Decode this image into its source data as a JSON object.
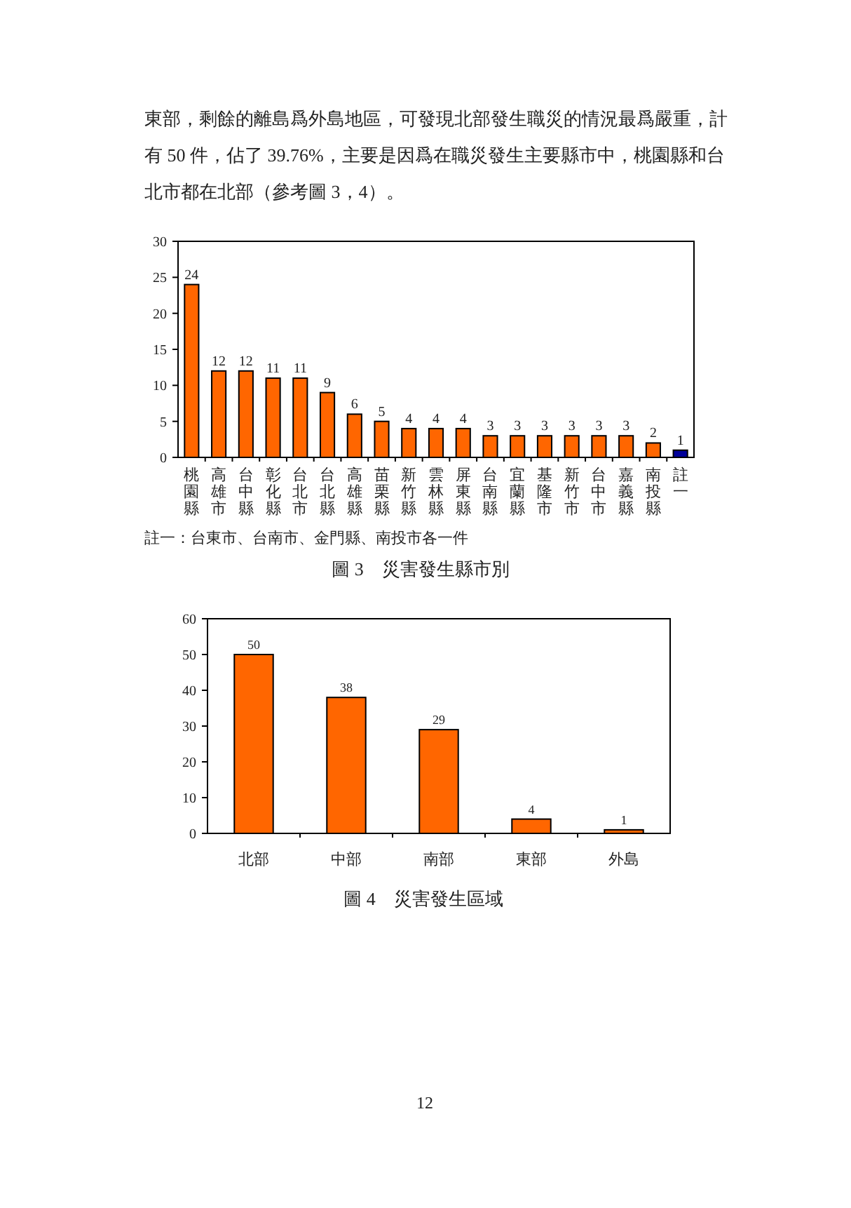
{
  "chart_data": [
    {
      "type": "bar",
      "title": "圖 3　災害發生縣市別",
      "annotations": [
        "東部，剩餘的離島爲外島地區，可發現北部發生職災的情況最爲嚴重，計有 50 件，佔了 39.76%，主要是因爲在職災發生主要縣市中，桃園縣和台北市都在北部（參考圖 3，4）。",
        "註一：台東市、台南市、金門縣、南投市各一件"
      ],
      "categories": [
        "桃園縣",
        "高雄市",
        "台中縣",
        "彰化縣",
        "台北市",
        "台北縣",
        "高雄縣",
        "苗栗縣",
        "新竹縣",
        "雲林縣",
        "屏東縣",
        "台南縣",
        "宜蘭縣",
        "基隆市",
        "新竹市",
        "台中市",
        "嘉義縣",
        "南投縣",
        "註一"
      ],
      "values": [
        24,
        12,
        12,
        11,
        11,
        9,
        6,
        5,
        4,
        4,
        4,
        3,
        3,
        3,
        3,
        3,
        3,
        2,
        1
      ],
      "colors": [
        "#ff6600",
        "#ff6600",
        "#ff6600",
        "#ff6600",
        "#ff6600",
        "#ff6600",
        "#ff6600",
        "#ff6600",
        "#ff6600",
        "#ff6600",
        "#ff6600",
        "#ff6600",
        "#ff6600",
        "#ff6600",
        "#ff6600",
        "#ff6600",
        "#ff6600",
        "#ff6600",
        "#000099"
      ],
      "ylim": [
        0,
        30
      ],
      "yticks": [
        0,
        5,
        10,
        15,
        20,
        25,
        30
      ],
      "data_labels": true,
      "grid": false
    },
    {
      "type": "bar",
      "title": "圖 4　災害發生區域",
      "annotations": [
        "12"
      ],
      "categories": [
        "北部",
        "中部",
        "南部",
        "東部",
        "外島"
      ],
      "values": [
        50,
        38,
        29,
        4,
        1
      ],
      "color": "#ff6600",
      "ylim": [
        0,
        60
      ],
      "yticks": [
        0,
        10,
        20,
        30,
        40,
        50,
        60
      ],
      "data_labels": true,
      "grid": false
    }
  ]
}
